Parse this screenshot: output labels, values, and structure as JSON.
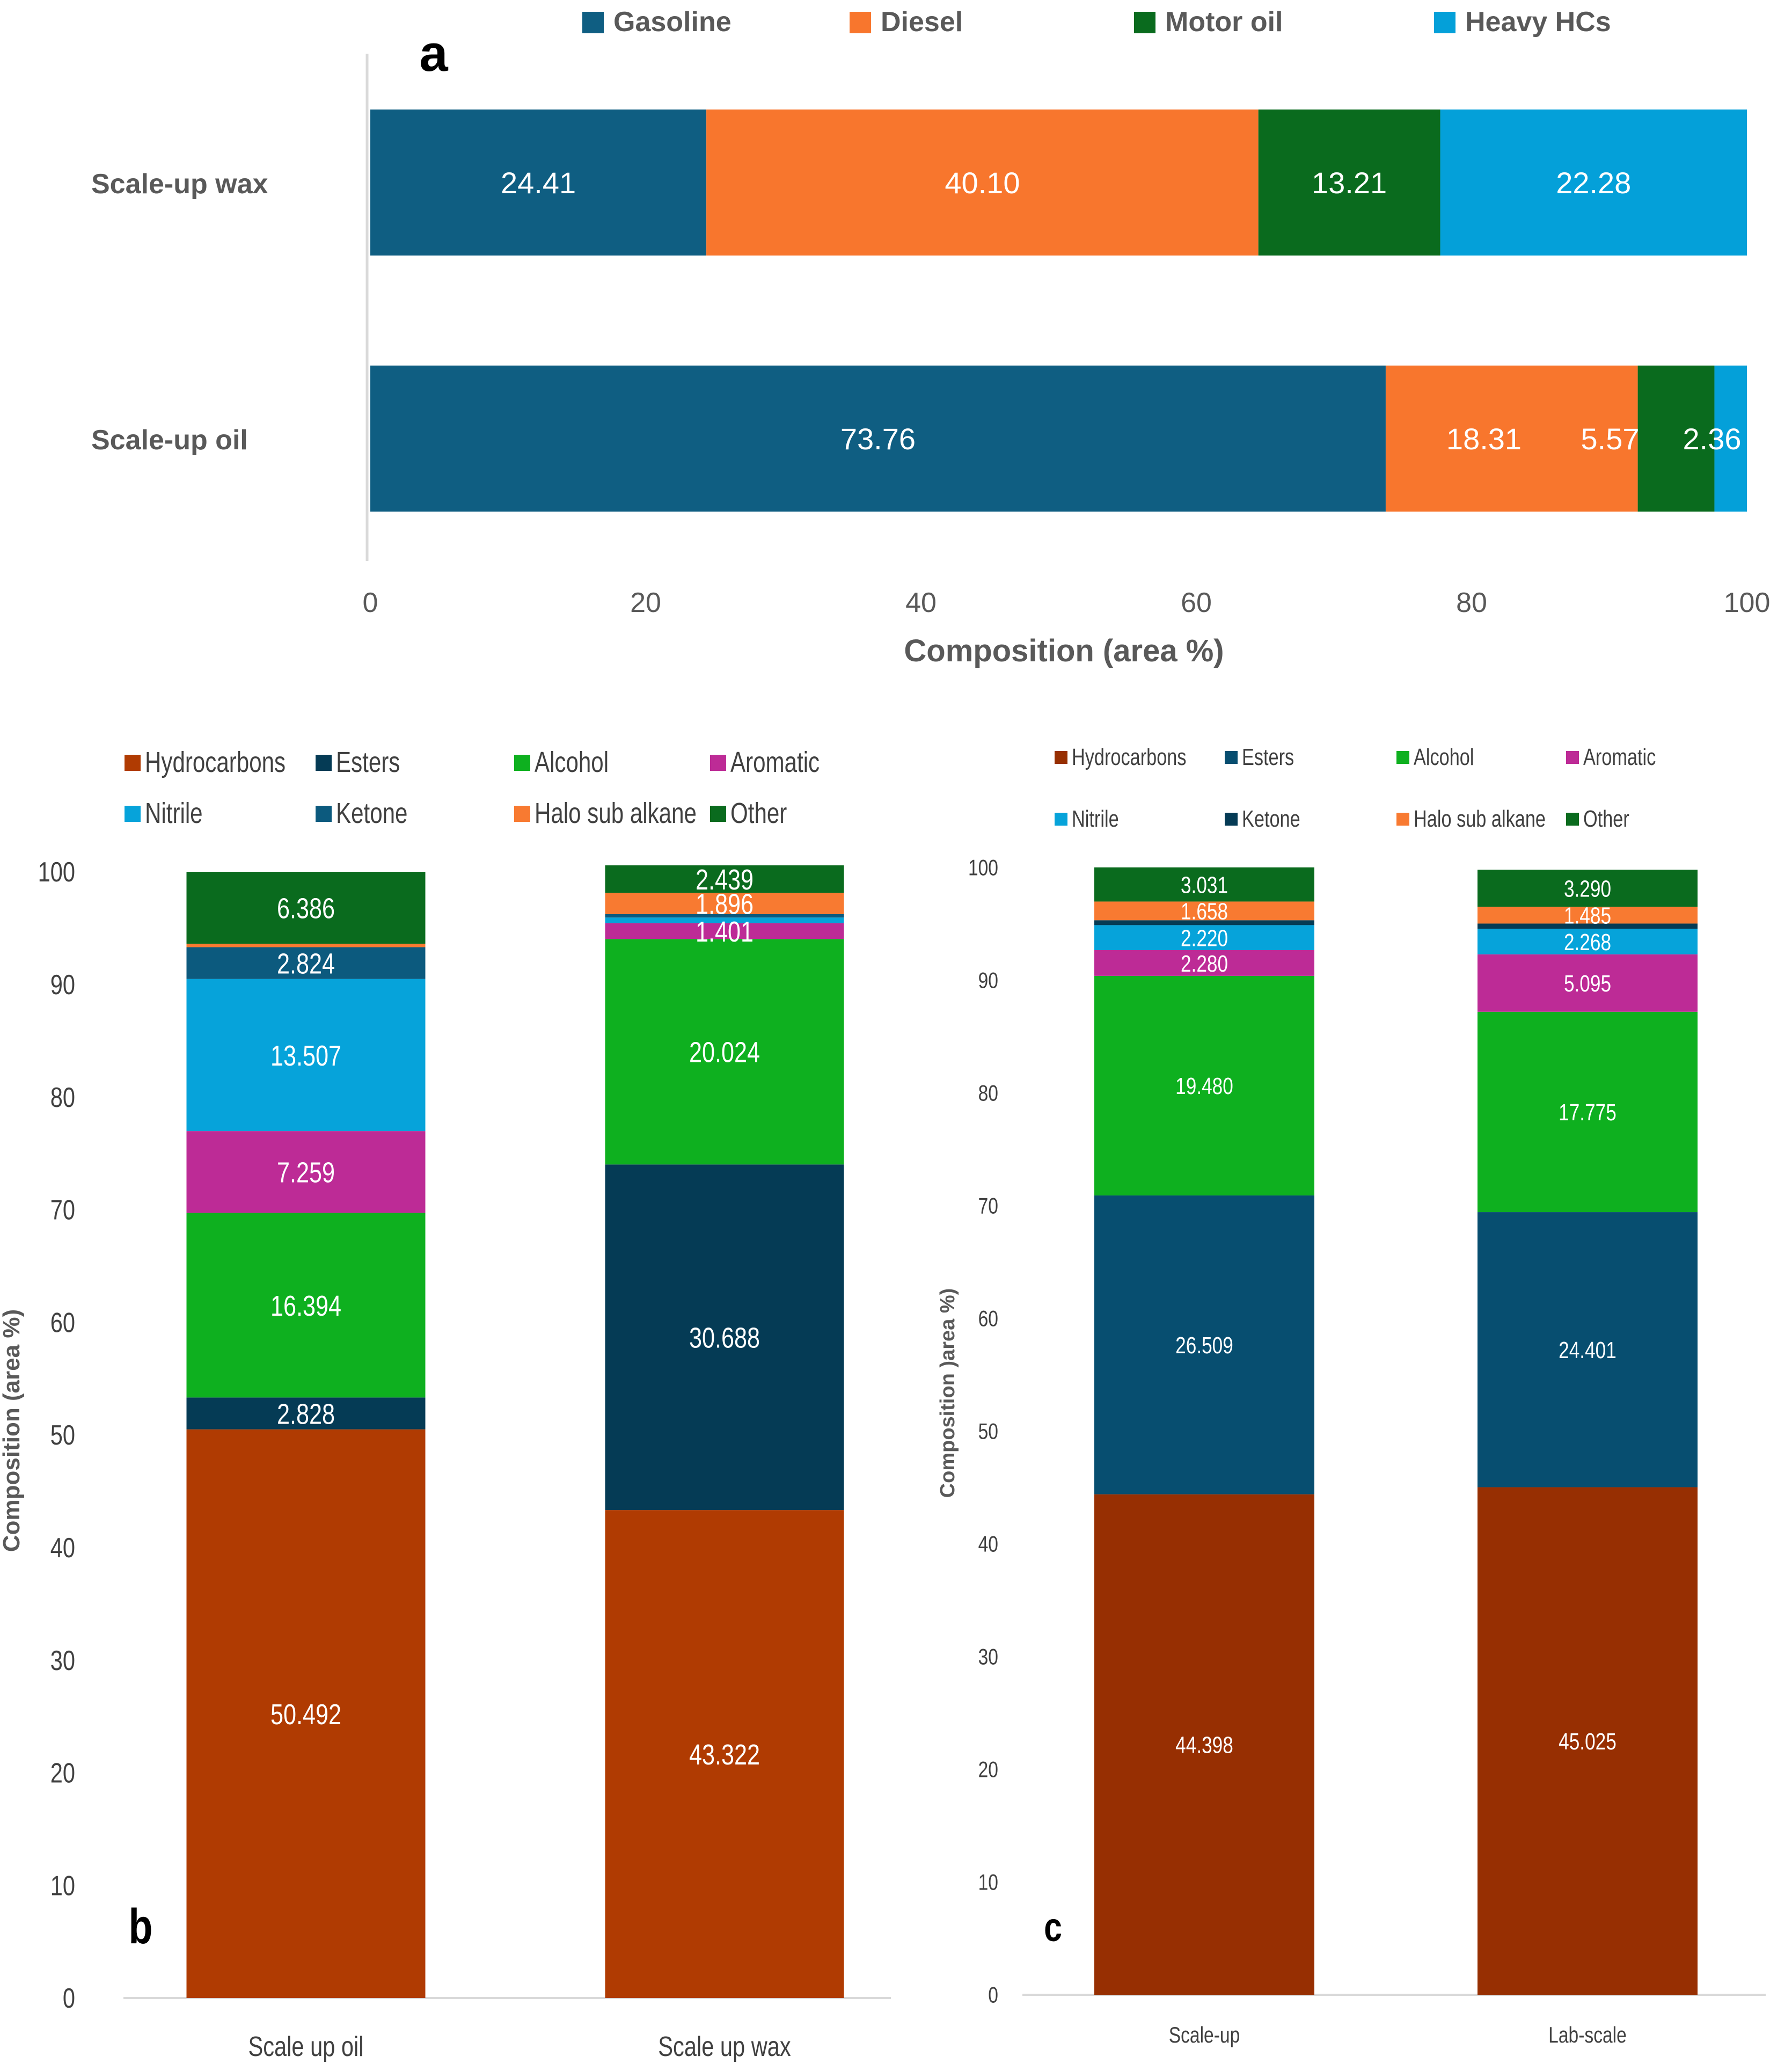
{
  "chart_data": [
    {
      "id": "a",
      "panel_label": "a",
      "type": "bar",
      "orientation": "horizontal",
      "stacked": true,
      "categories": [
        "Scale-up wax",
        "Scale-up oil"
      ],
      "series": [
        {
          "name": "Gasoline",
          "color": "#0f5e82",
          "values": [
            24.41,
            73.76
          ],
          "labels": [
            "24.41",
            "73.76"
          ]
        },
        {
          "name": "Diesel",
          "color": "#f8762d",
          "values": [
            40.1,
            18.31
          ],
          "labels": [
            "40.10",
            "18.31"
          ]
        },
        {
          "name": "Motor oil",
          "color": "#0a6b1e",
          "values": [
            13.21,
            5.57
          ],
          "labels": [
            "13.21",
            "5.57"
          ]
        },
        {
          "name": "Heavy HCs",
          "color": "#04a0d9",
          "values": [
            22.28,
            2.36
          ],
          "labels": [
            "22.28",
            "2.36"
          ]
        }
      ],
      "xlabel": "Composition (area %)",
      "ylabel": "",
      "xlim": [
        0,
        100
      ],
      "xticks": [
        0,
        20,
        40,
        60,
        80,
        100
      ],
      "legend": "top",
      "grid": false
    },
    {
      "id": "b",
      "panel_label": "b",
      "type": "bar",
      "orientation": "vertical",
      "stacked": true,
      "categories": [
        "Scale up oil",
        "Scale up wax"
      ],
      "series": [
        {
          "name": "Hydrocarbons",
          "color": "#b03b02",
          "values": [
            50.492,
            43.322
          ],
          "labels": [
            "50.492",
            "43.322"
          ]
        },
        {
          "name": "Esters",
          "color": "#053b55",
          "values": [
            2.828,
            30.688
          ],
          "labels": [
            "2.828",
            "30.688"
          ]
        },
        {
          "name": "Alcohol",
          "color": "#0eb01f",
          "values": [
            16.394,
            20.024
          ],
          "labels": [
            "16.394",
            "20.024"
          ]
        },
        {
          "name": "Aromatic",
          "color": "#bd2b96",
          "values": [
            7.259,
            1.401
          ],
          "labels": [
            "7.259",
            "1.401"
          ]
        },
        {
          "name": "Nitrile",
          "color": "#06a3da",
          "values": [
            13.507,
            0.5
          ],
          "labels": [
            "13.507",
            ""
          ]
        },
        {
          "name": "Ketone",
          "color": "#0c5a7e",
          "values": [
            2.824,
            0.3
          ],
          "labels": [
            "2.824",
            ""
          ]
        },
        {
          "name": "Halo sub alkane",
          "color": "#f87a31",
          "values": [
            0.31,
            1.896
          ],
          "labels": [
            "",
            "1.896"
          ]
        },
        {
          "name": "Other",
          "color": "#0a6b1e",
          "values": [
            6.386,
            2.439
          ],
          "labels": [
            "6.386",
            "2.439"
          ]
        }
      ],
      "xlabel": "",
      "ylabel": "Composition (area %)",
      "ylim": [
        0,
        100
      ],
      "yticks": [
        0,
        10,
        20,
        30,
        40,
        50,
        60,
        70,
        80,
        90,
        100
      ],
      "legend": "top",
      "grid": false
    },
    {
      "id": "c",
      "panel_label": "c",
      "type": "bar",
      "orientation": "vertical",
      "stacked": true,
      "categories": [
        "Scale-up",
        "Lab-scale"
      ],
      "series": [
        {
          "name": "Hydrocarbons",
          "color": "#972f02",
          "values": [
            44.398,
            45.025
          ],
          "labels": [
            "44.398",
            "45.025"
          ]
        },
        {
          "name": "Esters",
          "color": "#074e70",
          "values": [
            26.509,
            24.401
          ],
          "labels": [
            "26.509",
            "24.401"
          ]
        },
        {
          "name": "Alcohol",
          "color": "#0eb01f",
          "values": [
            19.48,
            17.775
          ],
          "labels": [
            "19.480",
            "17.775"
          ]
        },
        {
          "name": "Aromatic",
          "color": "#bd2b96",
          "values": [
            2.28,
            5.095
          ],
          "labels": [
            "2.280",
            "5.095"
          ]
        },
        {
          "name": "Nitrile",
          "color": "#06a3da",
          "values": [
            2.22,
            2.268
          ],
          "labels": [
            "2.220",
            "2.268"
          ]
        },
        {
          "name": "Ketone",
          "color": "#053b55",
          "values": [
            0.434,
            0.461
          ],
          "labels": [
            "",
            ""
          ]
        },
        {
          "name": "Halo sub alkane",
          "color": "#f87a31",
          "values": [
            1.658,
            1.485
          ],
          "labels": [
            "1.658",
            "1.485"
          ]
        },
        {
          "name": "Other",
          "color": "#0a6b1e",
          "values": [
            3.031,
            3.29
          ],
          "labels": [
            "3.031",
            "3.290"
          ]
        }
      ],
      "xlabel": "",
      "ylabel": "Composition )area %)",
      "ylim": [
        0,
        100
      ],
      "yticks": [
        0,
        10,
        20,
        30,
        40,
        50,
        60,
        70,
        80,
        90,
        100
      ],
      "legend": "top",
      "grid": false
    }
  ]
}
